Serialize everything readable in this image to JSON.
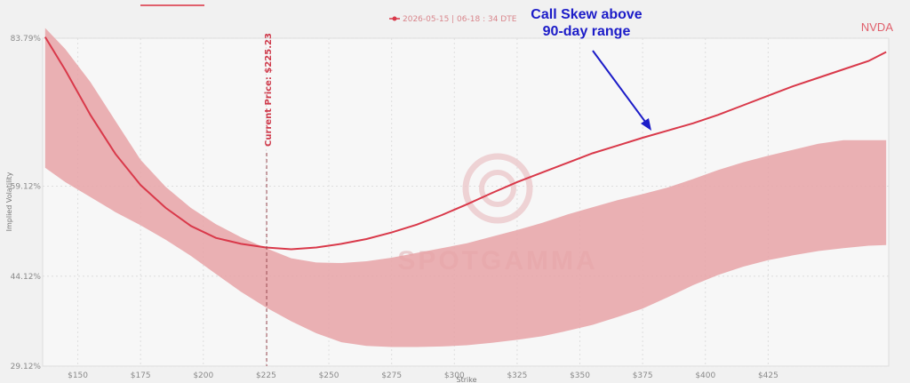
{
  "chart_data": {
    "type": "line",
    "title": "",
    "ticker": "NVDA",
    "xlabel": "Strike",
    "ylabel": "Implied Volatility",
    "x_ticks": [
      150,
      175,
      200,
      225,
      250,
      275,
      300,
      325,
      350,
      375,
      400,
      425
    ],
    "x_tick_labels": [
      "$150",
      "$175",
      "$200",
      "$225",
      "$250",
      "$275",
      "$300",
      "$325",
      "$350",
      "$375",
      "$400",
      "$425"
    ],
    "xlim": [
      136,
      473
    ],
    "y_ticks": [
      29.12,
      44.12,
      59.12,
      83.79
    ],
    "y_tick_labels": [
      "29.12%",
      "44.12%",
      "59.12%",
      "83.79%"
    ],
    "ylim": [
      29.12,
      83.79
    ],
    "grid": true,
    "legend_position": "top-center",
    "series": [
      {
        "name": "2026-05-15 | 06-18 : 34 DTE",
        "color": "#d9394a",
        "x": [
          137,
          145,
          155,
          165,
          175,
          185,
          195,
          205,
          215,
          225,
          235,
          245,
          255,
          265,
          275,
          285,
          295,
          305,
          315,
          325,
          335,
          345,
          355,
          365,
          375,
          385,
          395,
          405,
          415,
          425,
          435,
          445,
          455,
          465,
          472
        ],
        "y": [
          84.0,
          78.5,
          71.0,
          64.5,
          59.3,
          55.5,
          52.5,
          50.5,
          49.5,
          48.9,
          48.6,
          48.9,
          49.5,
          50.3,
          51.4,
          52.7,
          54.3,
          56.1,
          58.0,
          59.8,
          61.4,
          63.0,
          64.6,
          65.9,
          67.2,
          68.4,
          69.6,
          71.0,
          72.6,
          74.2,
          75.8,
          77.2,
          78.6,
          80.0,
          81.5
        ]
      }
    ],
    "band": {
      "name": "90-day range",
      "color": "#e8a3a7",
      "x": [
        137,
        145,
        155,
        165,
        175,
        185,
        195,
        205,
        215,
        225,
        235,
        245,
        255,
        265,
        275,
        285,
        295,
        305,
        315,
        325,
        335,
        345,
        355,
        365,
        375,
        385,
        395,
        405,
        415,
        425,
        435,
        445,
        455,
        465,
        472
      ],
      "upper": [
        85.5,
        82.0,
        76.5,
        70.0,
        63.5,
        59.0,
        55.5,
        52.8,
        50.6,
        48.8,
        47.1,
        46.4,
        46.3,
        46.6,
        47.2,
        48.0,
        48.8,
        49.6,
        50.7,
        51.8,
        53.0,
        54.4,
        55.6,
        56.8,
        57.8,
        58.9,
        60.3,
        61.8,
        63.1,
        64.2,
        65.2,
        66.2,
        66.8,
        66.8,
        66.8
      ],
      "lower": [
        62.2,
        59.8,
        57.3,
        54.8,
        52.6,
        50.2,
        47.5,
        44.5,
        41.5,
        38.9,
        36.6,
        34.6,
        33.1,
        32.5,
        32.3,
        32.3,
        32.4,
        32.6,
        33.0,
        33.5,
        34.1,
        35.0,
        36.0,
        37.3,
        38.7,
        40.6,
        42.6,
        44.3,
        45.7,
        46.8,
        47.6,
        48.3,
        48.8,
        49.2,
        49.3
      ]
    },
    "current_price": 225.23,
    "current_price_label": "Current Price: $225.23",
    "annotation": [
      "Call Skew above",
      "90-day range"
    ],
    "watermark": "SPOTGAMMA"
  }
}
